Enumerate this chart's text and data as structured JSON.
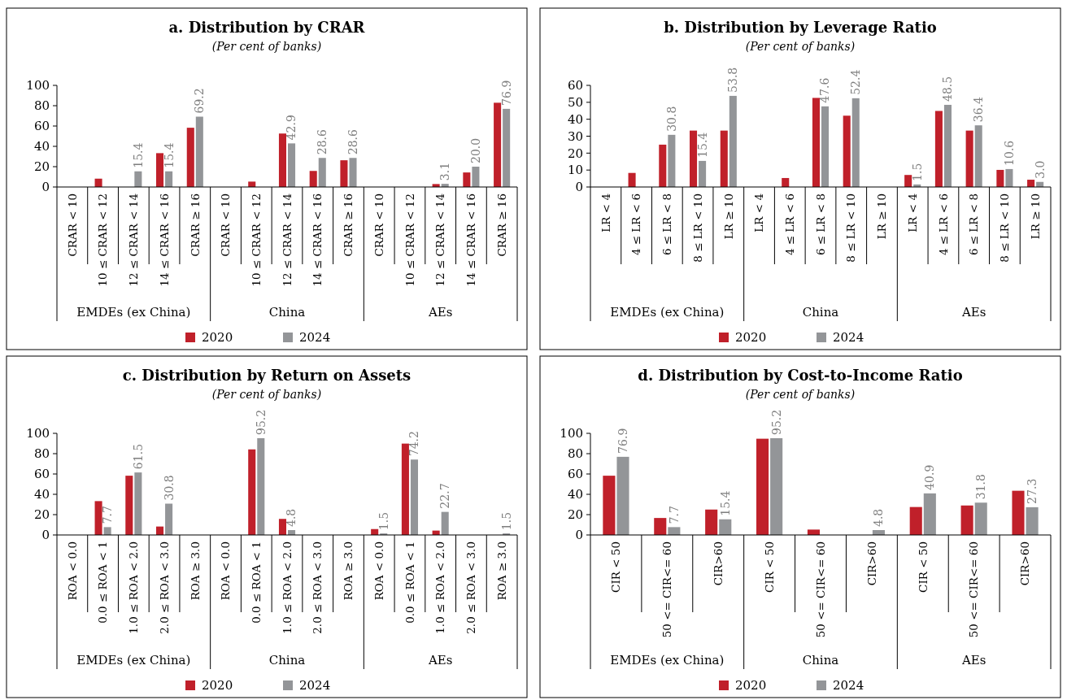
{
  "chart_data": [
    {
      "type": "bar",
      "title": "a. Distribution by CRAR",
      "subtitle": "(Per cent of banks)",
      "categories": [
        "CRAR < 10",
        "10 ≤ CRAR < 12",
        "12 ≤ CRAR < 14",
        "14 ≤ CRAR < 16",
        "CRAR ≥ 16",
        "CRAR < 10",
        "10 ≤ CRAR < 12",
        "12 ≤ CRAR < 14",
        "14 ≤ CRAR < 16",
        "CRAR ≥ 16",
        "CRAR < 10",
        "10 ≤ CRAR < 12",
        "12 ≤ CRAR < 14",
        "14 ≤ CRAR < 16",
        "CRAR ≥ 16"
      ],
      "annotations": [
        "EMDEs (ex China)",
        "China",
        "AEs"
      ],
      "ylim": [
        0,
        100
      ],
      "yticks": [
        0,
        20,
        40,
        60,
        80,
        100
      ],
      "legend": "bottom",
      "series": [
        {
          "name": "2020",
          "color": "#c0202a",
          "values": [
            null,
            8.2,
            null,
            33.3,
            58.3,
            null,
            5.3,
            52.6,
            15.8,
            26.3,
            null,
            null,
            2.9,
            14.3,
            82.9
          ]
        },
        {
          "name": "2024",
          "color": "#939598",
          "values": [
            null,
            null,
            15.4,
            15.4,
            69.2,
            null,
            null,
            42.9,
            28.6,
            28.6,
            null,
            null,
            3.1,
            20.0,
            76.9
          ],
          "value_labels": [
            null,
            null,
            "15.4",
            "15.4",
            "69.2",
            null,
            null,
            "42.9",
            "28.6",
            "28.6",
            null,
            null,
            "3.1",
            "20.0",
            "76.9"
          ]
        }
      ]
    },
    {
      "type": "bar",
      "title": "b. Distribution by Leverage Ratio",
      "subtitle": "(Per cent of banks)",
      "categories": [
        "LR < 4",
        "4 ≤ LR < 6",
        "6 ≤ LR < 8",
        "8 ≤ LR < 10",
        "LR ≥ 10",
        "LR < 4",
        "4 ≤ LR < 6",
        "6 ≤ LR < 8",
        "8 ≤ LR < 10",
        "LR ≥ 10",
        "LR < 4",
        "4 ≤ LR < 6",
        "6 ≤ LR < 8",
        "8 ≤ LR < 10",
        "LR ≥ 10"
      ],
      "annotations": [
        "EMDEs (ex China)",
        "China",
        "AEs"
      ],
      "ylim": [
        0,
        60
      ],
      "yticks": [
        0,
        10,
        20,
        30,
        40,
        50,
        60
      ],
      "legend": "bottom",
      "series": [
        {
          "name": "2020",
          "color": "#c0202a",
          "values": [
            null,
            8.3,
            25.0,
            33.3,
            33.3,
            null,
            5.3,
            52.6,
            42.1,
            null,
            7.1,
            44.9,
            33.3,
            10.1,
            4.3
          ]
        },
        {
          "name": "2024",
          "color": "#939598",
          "values": [
            null,
            null,
            30.8,
            15.4,
            53.8,
            null,
            null,
            47.6,
            52.4,
            null,
            1.5,
            48.5,
            36.4,
            10.6,
            3.0
          ],
          "value_labels": [
            null,
            null,
            "30.8",
            "15.4",
            "53.8",
            null,
            null,
            "47.6",
            "52.4",
            null,
            "1.5",
            "48.5",
            "36.4",
            "10.6",
            "3.0"
          ]
        }
      ]
    },
    {
      "type": "bar",
      "title": "c. Distribution by Return on Assets",
      "subtitle": "(Per cent of banks)",
      "categories": [
        "ROA < 0.0",
        "0.0 ≤ ROA < 1",
        "1.0 ≤ ROA < 2.0",
        "2.0 ≤ ROA < 3.0",
        "ROA ≥ 3.0",
        "ROA < 0.0",
        "0.0 ≤ ROA < 1",
        "1.0 ≤ ROA < 2.0",
        "2.0 ≤ ROA < 3.0",
        "ROA ≥ 3.0",
        "ROA < 0.0",
        "0.0 ≤ ROA < 1",
        "1.0 ≤ ROA < 2.0",
        "2.0 ≤ ROA < 3.0",
        "ROA ≥ 3.0"
      ],
      "annotations": [
        "EMDEs (ex China)",
        "China",
        "AEs"
      ],
      "ylim": [
        0,
        100
      ],
      "yticks": [
        0,
        20,
        40,
        60,
        80,
        100
      ],
      "legend": "bottom",
      "series": [
        {
          "name": "2020",
          "color": "#c0202a",
          "values": [
            null,
            33.3,
            58.3,
            8.3,
            null,
            null,
            84.2,
            15.8,
            null,
            null,
            5.8,
            89.9,
            4.3,
            null,
            null
          ]
        },
        {
          "name": "2024",
          "color": "#939598",
          "values": [
            null,
            7.7,
            61.5,
            30.8,
            null,
            null,
            95.2,
            4.8,
            null,
            null,
            1.5,
            74.2,
            22.7,
            null,
            1.5
          ],
          "value_labels": [
            null,
            "7.7",
            "61.5",
            "30.8",
            null,
            null,
            "95.2",
            "4.8",
            null,
            null,
            "1.5",
            "74.2",
            "22.7",
            null,
            "1.5"
          ]
        }
      ]
    },
    {
      "type": "bar",
      "title": "d. Distribution by Cost-to-Income Ratio",
      "subtitle": "(Per cent of banks)",
      "categories": [
        "CIR < 50",
        "50 <= CIR<= 60",
        "CIR>60",
        "CIR < 50",
        "50 <= CIR<= 60",
        "CIR>60",
        "CIR < 50",
        "50 <= CIR<= 60",
        "CIR>60"
      ],
      "annotations": [
        "EMDEs (ex China)",
        "China",
        "AEs"
      ],
      "ylim": [
        0,
        100
      ],
      "yticks": [
        0,
        20,
        40,
        60,
        80,
        100
      ],
      "legend": "bottom",
      "series": [
        {
          "name": "2020",
          "color": "#c0202a",
          "values": [
            58.3,
            16.7,
            25.0,
            94.7,
            5.3,
            null,
            27.5,
            29.0,
            43.5
          ]
        },
        {
          "name": "2024",
          "color": "#939598",
          "values": [
            76.9,
            7.7,
            15.4,
            95.2,
            null,
            4.8,
            40.9,
            31.8,
            27.3
          ],
          "value_labels": [
            "76.9",
            "7.7",
            "15.4",
            "95.2",
            null,
            "4.8",
            "40.9",
            "31.8",
            "27.3"
          ]
        }
      ]
    }
  ]
}
